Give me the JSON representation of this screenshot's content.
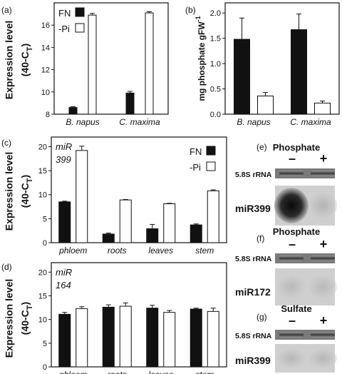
{
  "colors": {
    "filled": "#111111",
    "open": "#ffffff",
    "stroke": "#111111",
    "blot_bg": "#cfcfcf"
  },
  "chart_data": [
    {
      "panel": "(a)",
      "type": "bar",
      "categories": [
        "B. napus",
        "C. maxima"
      ],
      "series": [
        {
          "name": "FN",
          "values": [
            8.6,
            9.9
          ],
          "errors": [
            0.08,
            0.15
          ]
        },
        {
          "name": "-Pi",
          "values": [
            16.9,
            17.1
          ],
          "errors": [
            0.15,
            0.1
          ]
        }
      ],
      "ylabel": "Expression level",
      "ylabel2": "(40-C",
      "ylabel_sub": "T",
      "ylabel_close": ")",
      "ylim": [
        8,
        18
      ],
      "yticks": [
        8,
        10,
        12,
        14,
        16
      ],
      "legend": "top-left"
    },
    {
      "panel": "(b)",
      "type": "bar",
      "categories": [
        "B. napus",
        "C. maxima"
      ],
      "series": [
        {
          "name": "FN",
          "values": [
            1.48,
            1.67
          ],
          "errors": [
            0.42,
            0.31
          ]
        },
        {
          "name": "-Pi",
          "values": [
            0.36,
            0.22
          ],
          "errors": [
            0.07,
            0.04
          ]
        }
      ],
      "ylabel": "mg phosphate gFW",
      "ylabel_sup": "-1",
      "ylim": [
        0,
        2.2
      ],
      "yticks": [
        0.0,
        0.5,
        1.0,
        1.5,
        2.0
      ],
      "ytick_labels": [
        "0.0",
        "0.5",
        "1.0",
        "1.5",
        "2.0"
      ]
    },
    {
      "panel": "(c)",
      "type": "bar",
      "annotation": [
        "miR",
        "399"
      ],
      "categories": [
        "phloem",
        "roots",
        "leaves",
        "stem"
      ],
      "series": [
        {
          "name": "FN",
          "values": [
            8.5,
            1.8,
            2.9,
            3.7
          ],
          "errors": [
            0.15,
            0.2,
            0.9,
            0.2
          ]
        },
        {
          "name": "-Pi",
          "values": [
            19.2,
            8.9,
            8.1,
            10.8
          ],
          "errors": [
            0.9,
            0.1,
            0.1,
            0.2
          ]
        }
      ],
      "ylabel": "Expression level",
      "ylabel2": "(40-C",
      "ylabel_sub": "T",
      "ylabel_close": ")",
      "ylim": [
        0,
        22
      ],
      "yticks": [
        0,
        5,
        10,
        15,
        20
      ],
      "legend": "top-right"
    },
    {
      "panel": "(d)",
      "type": "bar",
      "annotation": [
        "miR",
        "164"
      ],
      "categories": [
        "phloem",
        "roots",
        "leaves",
        "stem"
      ],
      "series": [
        {
          "name": "FN",
          "values": [
            11.1,
            12.6,
            12.4,
            12.2
          ],
          "errors": [
            0.4,
            0.5,
            0.6,
            0.2
          ]
        },
        {
          "name": "-Pi",
          "values": [
            12.3,
            12.8,
            11.5,
            11.7
          ],
          "errors": [
            0.4,
            0.7,
            0.4,
            0.7
          ]
        }
      ],
      "ylabel": "Expression level",
      "ylabel2": "(40-C",
      "ylabel_sub": "T",
      "ylabel_close": ")",
      "ylim": [
        0,
        22
      ],
      "yticks": [
        0,
        5,
        10,
        15,
        20
      ]
    }
  ],
  "blots": [
    {
      "panel": "(e)",
      "treatment": "Phosphate",
      "minus": "–",
      "plus": "+",
      "top_label": "5.8S rRNA",
      "bottom_label": "miR399",
      "signal": [
        1.0,
        0.15
      ]
    },
    {
      "panel": "(f)",
      "treatment": "Phosphate",
      "minus": "–",
      "plus": "+",
      "top_label": "5.8S rRNA",
      "bottom_label": "miR172",
      "signal": [
        0.05,
        0.05
      ]
    },
    {
      "panel": "(g)",
      "treatment": "Sulfate",
      "minus": "–",
      "plus": "+",
      "top_label": "5.8S rRNA",
      "bottom_label": "miR399",
      "signal": [
        0.1,
        0.1
      ]
    }
  ]
}
